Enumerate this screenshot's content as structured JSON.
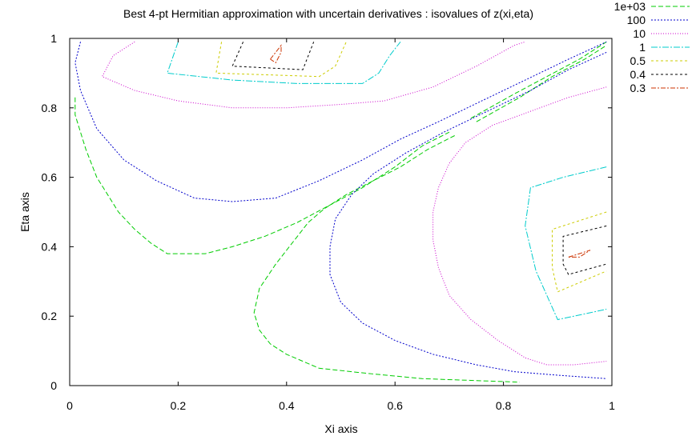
{
  "chart_data": {
    "type": "contour",
    "title": "Best 4-pt Hermitian approximation with uncertain derivatives : isovalues of z(xi,eta)",
    "xlabel": "Xi axis",
    "ylabel": "Eta axis",
    "xlim": [
      0,
      1
    ],
    "ylim": [
      0,
      1
    ],
    "xticks": [
      "0",
      "0.2",
      "0.4",
      "0.6",
      "0.8",
      "1"
    ],
    "yticks": [
      "0",
      "0.2",
      "0.4",
      "0.6",
      "0.8",
      "1"
    ],
    "grid": false,
    "legend_position": "top-right",
    "series": [
      {
        "name": "1e+03",
        "color": "#00cc00",
        "dash": "6,3",
        "lines": [
          [
            [
              0.01,
              0.83
            ],
            [
              0.01,
              0.78
            ],
            [
              0.02,
              0.73
            ],
            [
              0.03,
              0.68
            ],
            [
              0.05,
              0.6
            ],
            [
              0.07,
              0.55
            ],
            [
              0.09,
              0.5
            ],
            [
              0.12,
              0.45
            ],
            [
              0.15,
              0.41
            ],
            [
              0.18,
              0.38
            ],
            [
              0.25,
              0.38
            ],
            [
              0.3,
              0.4
            ],
            [
              0.36,
              0.43
            ],
            [
              0.42,
              0.47
            ],
            [
              0.48,
              0.52
            ],
            [
              0.54,
              0.57
            ],
            [
              0.6,
              0.63
            ],
            [
              0.65,
              0.69
            ],
            [
              0.7,
              0.73
            ]
          ],
          [
            [
              0.71,
              0.72
            ],
            [
              0.66,
              0.68
            ],
            [
              0.61,
              0.63
            ],
            [
              0.56,
              0.59
            ],
            [
              0.51,
              0.55
            ],
            [
              0.47,
              0.51
            ],
            [
              0.44,
              0.47
            ],
            [
              0.41,
              0.41
            ],
            [
              0.38,
              0.35
            ],
            [
              0.35,
              0.28
            ],
            [
              0.34,
              0.21
            ],
            [
              0.35,
              0.16
            ],
            [
              0.37,
              0.12
            ],
            [
              0.4,
              0.09
            ],
            [
              0.46,
              0.05
            ],
            [
              0.55,
              0.035
            ],
            [
              0.65,
              0.02
            ],
            [
              0.74,
              0.015
            ],
            [
              0.83,
              0.01
            ]
          ],
          [
            [
              0.74,
              0.77
            ],
            [
              0.82,
              0.84
            ],
            [
              0.88,
              0.89
            ],
            [
              0.94,
              0.94
            ],
            [
              0.99,
              0.99
            ]
          ],
          [
            [
              0.75,
              0.76
            ],
            [
              0.83,
              0.83
            ],
            [
              0.89,
              0.89
            ],
            [
              0.95,
              0.94
            ],
            [
              0.99,
              0.98
            ]
          ]
        ]
      },
      {
        "name": "100",
        "color": "#0000cc",
        "dash": "2,2",
        "lines": [
          [
            [
              0.02,
              0.99
            ],
            [
              0.01,
              0.93
            ],
            [
              0.02,
              0.85
            ],
            [
              0.05,
              0.74
            ],
            [
              0.1,
              0.65
            ],
            [
              0.16,
              0.59
            ],
            [
              0.23,
              0.54
            ],
            [
              0.3,
              0.53
            ],
            [
              0.38,
              0.54
            ],
            [
              0.46,
              0.59
            ],
            [
              0.54,
              0.65
            ],
            [
              0.61,
              0.71
            ],
            [
              0.68,
              0.76
            ],
            [
              0.76,
              0.82
            ],
            [
              0.84,
              0.88
            ],
            [
              0.92,
              0.94
            ],
            [
              0.99,
              0.99
            ]
          ],
          [
            [
              0.99,
              0.96
            ],
            [
              0.92,
              0.91
            ],
            [
              0.85,
              0.85
            ],
            [
              0.77,
              0.79
            ],
            [
              0.69,
              0.73
            ],
            [
              0.62,
              0.67
            ],
            [
              0.56,
              0.61
            ],
            [
              0.52,
              0.55
            ],
            [
              0.49,
              0.48
            ],
            [
              0.48,
              0.4
            ],
            [
              0.48,
              0.32
            ],
            [
              0.5,
              0.24
            ],
            [
              0.54,
              0.18
            ],
            [
              0.6,
              0.13
            ],
            [
              0.67,
              0.09
            ],
            [
              0.75,
              0.06
            ],
            [
              0.82,
              0.04
            ],
            [
              0.9,
              0.03
            ],
            [
              0.99,
              0.02
            ]
          ]
        ]
      },
      {
        "name": "10",
        "color": "#cc00cc",
        "dash": "1,2",
        "lines": [
          [
            [
              0.12,
              0.99
            ],
            [
              0.08,
              0.95
            ],
            [
              0.06,
              0.89
            ],
            [
              0.12,
              0.85
            ],
            [
              0.2,
              0.82
            ],
            [
              0.3,
              0.8
            ],
            [
              0.4,
              0.8
            ],
            [
              0.5,
              0.81
            ],
            [
              0.58,
              0.82
            ],
            [
              0.67,
              0.86
            ],
            [
              0.75,
              0.92
            ],
            [
              0.82,
              0.98
            ],
            [
              0.84,
              0.99
            ]
          ],
          [
            [
              0.99,
              0.86
            ],
            [
              0.92,
              0.83
            ],
            [
              0.85,
              0.79
            ],
            [
              0.78,
              0.75
            ],
            [
              0.73,
              0.7
            ],
            [
              0.7,
              0.64
            ],
            [
              0.68,
              0.57
            ],
            [
              0.67,
              0.5
            ],
            [
              0.67,
              0.42
            ],
            [
              0.68,
              0.34
            ],
            [
              0.7,
              0.26
            ],
            [
              0.74,
              0.19
            ],
            [
              0.79,
              0.13
            ],
            [
              0.84,
              0.08
            ],
            [
              0.88,
              0.06
            ],
            [
              0.93,
              0.06
            ],
            [
              0.99,
              0.07
            ]
          ]
        ]
      },
      {
        "name": "1",
        "color": "#00cccc",
        "dash": "8,2,2,2",
        "lines": [
          [
            [
              0.2,
              0.99
            ],
            [
              0.18,
              0.9
            ],
            [
              0.3,
              0.88
            ],
            [
              0.42,
              0.87
            ],
            [
              0.54,
              0.87
            ],
            [
              0.57,
              0.9
            ],
            [
              0.59,
              0.95
            ],
            [
              0.61,
              0.99
            ]
          ],
          [
            [
              0.99,
              0.63
            ],
            [
              0.91,
              0.6
            ],
            [
              0.85,
              0.57
            ],
            [
              0.84,
              0.46
            ],
            [
              0.86,
              0.33
            ],
            [
              0.9,
              0.19
            ],
            [
              0.96,
              0.21
            ],
            [
              0.99,
              0.22
            ]
          ]
        ]
      },
      {
        "name": "0.5",
        "color": "#cccc00",
        "dash": "3,3",
        "lines": [
          [
            [
              0.28,
              0.99
            ],
            [
              0.27,
              0.9
            ],
            [
              0.46,
              0.89
            ],
            [
              0.49,
              0.92
            ],
            [
              0.51,
              0.99
            ]
          ],
          [
            [
              0.99,
              0.5
            ],
            [
              0.89,
              0.45
            ],
            [
              0.89,
              0.34
            ],
            [
              0.9,
              0.27
            ],
            [
              0.99,
              0.33
            ]
          ]
        ]
      },
      {
        "name": "0.4",
        "color": "#000000",
        "dash": "3,3",
        "lines": [
          [
            [
              0.32,
              0.99
            ],
            [
              0.3,
              0.92
            ],
            [
              0.43,
              0.91
            ],
            [
              0.45,
              0.99
            ]
          ],
          [
            [
              0.99,
              0.46
            ],
            [
              0.91,
              0.43
            ],
            [
              0.91,
              0.35
            ],
            [
              0.92,
              0.32
            ],
            [
              0.99,
              0.35
            ]
          ]
        ]
      },
      {
        "name": "0.3",
        "color": "#cc3300",
        "dash": "6,2,2,2",
        "lines": [
          [
            [
              0.37,
              0.94
            ],
            [
              0.39,
              0.98
            ],
            [
              0.39,
              0.96
            ],
            [
              0.38,
              0.93
            ],
            [
              0.37,
              0.94
            ]
          ],
          [
            [
              0.92,
              0.37
            ],
            [
              0.94,
              0.38
            ],
            [
              0.96,
              0.39
            ],
            [
              0.94,
              0.37
            ],
            [
              0.92,
              0.37
            ]
          ]
        ]
      }
    ]
  }
}
